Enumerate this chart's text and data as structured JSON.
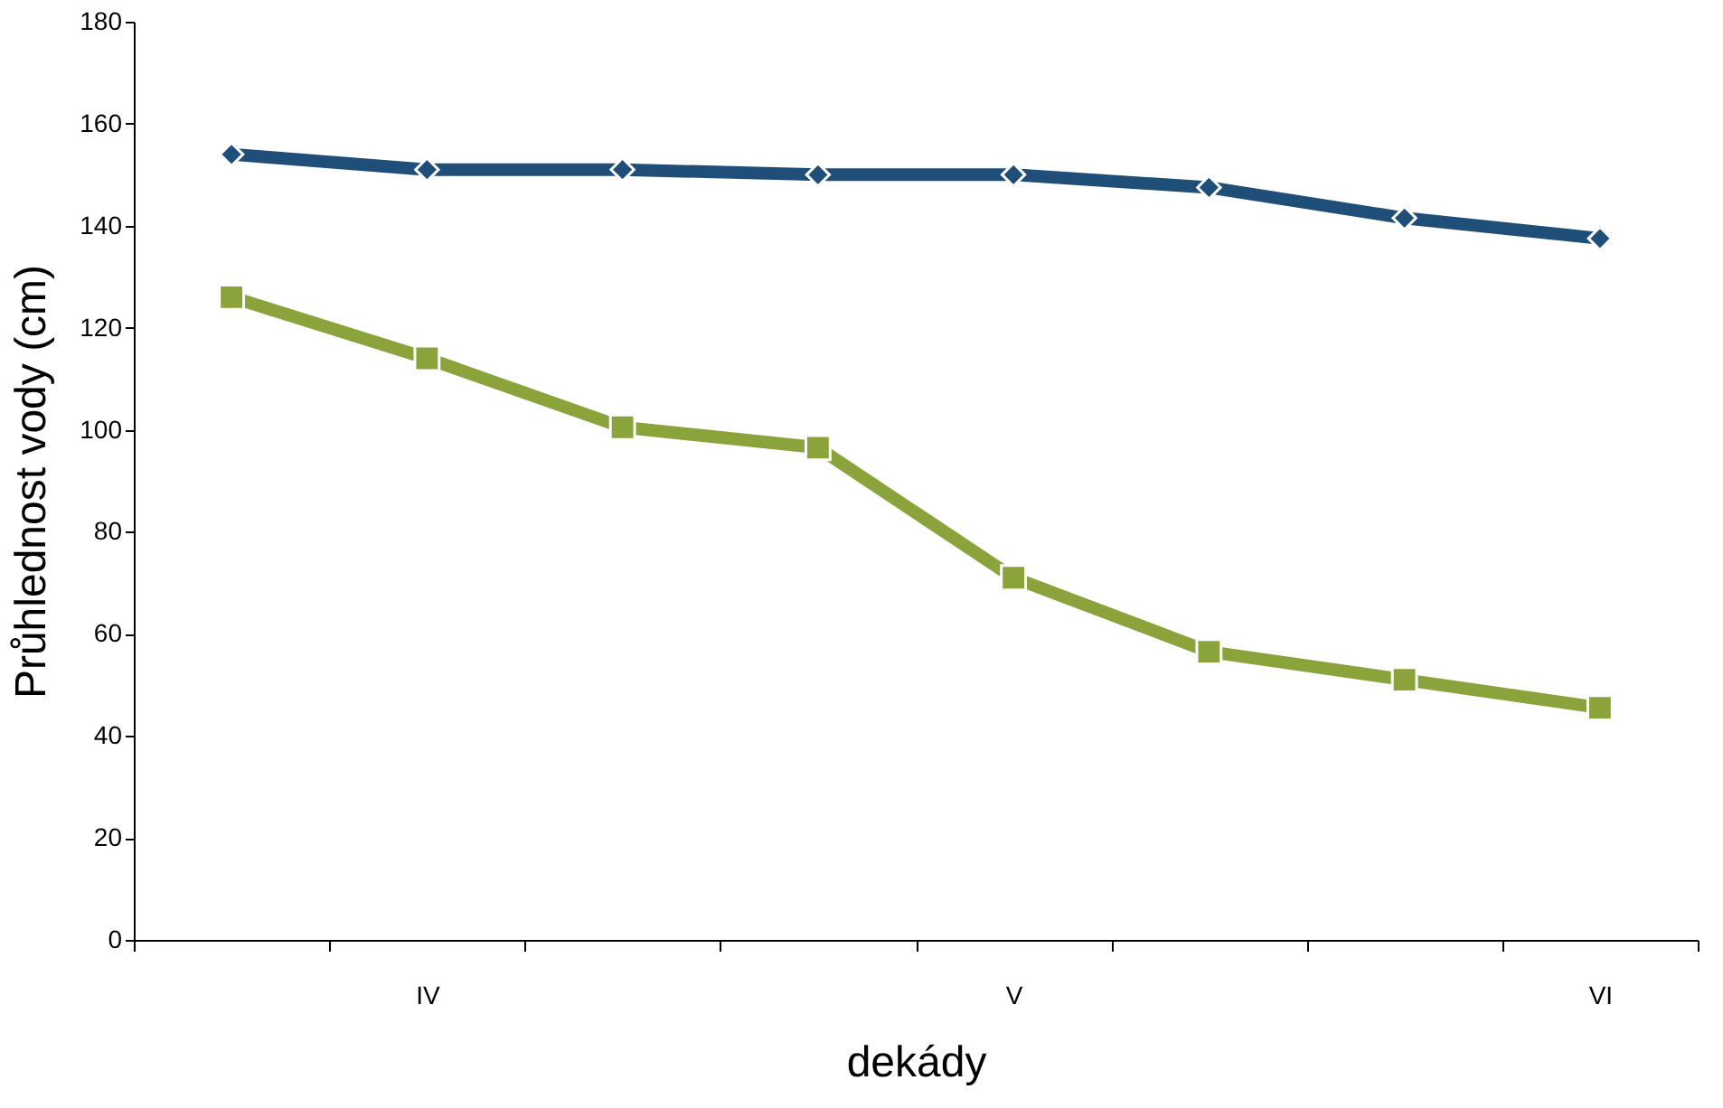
{
  "chart_data": {
    "type": "line",
    "xlabel": "dekády",
    "ylabel": "Průhlednost vody (cm)",
    "categories": [
      null,
      "IV",
      null,
      null,
      "V",
      null,
      null,
      "VI"
    ],
    "ylim": [
      0,
      180
    ],
    "yticks": [
      0,
      20,
      40,
      60,
      80,
      100,
      120,
      140,
      160,
      180
    ],
    "grid": false,
    "series": [
      {
        "color": "#1f4e79",
        "marker": "diamond",
        "values": [
          154,
          151,
          151,
          150,
          150,
          147.5,
          141.5,
          137.5
        ]
      },
      {
        "color": "#8aa33a",
        "marker": "square",
        "values": [
          126,
          114,
          100.5,
          96.5,
          71,
          56.5,
          51,
          45.5
        ]
      }
    ]
  }
}
